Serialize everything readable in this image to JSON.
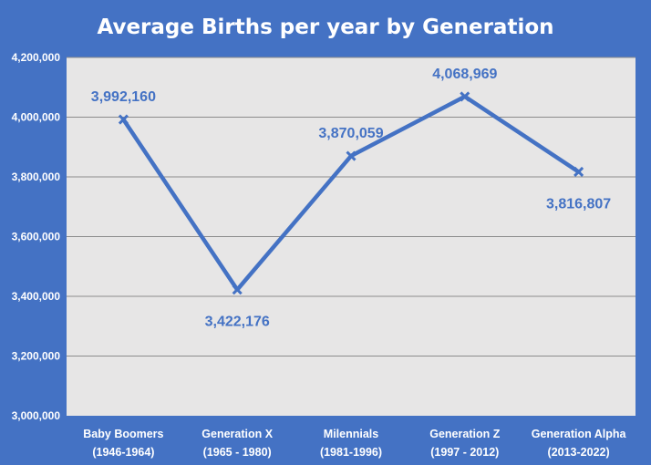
{
  "chart_data": {
    "type": "line",
    "title": "Average Births per year by Generation",
    "xlabel": "",
    "ylabel": "",
    "categories": [
      [
        "Baby Boomers",
        "(1946-1964)"
      ],
      [
        "Generation X",
        "(1965 - 1980)"
      ],
      [
        "Milennials",
        "(1981-1996)"
      ],
      [
        "Generation Z",
        "(1997 - 2012)"
      ],
      [
        "Generation Alpha",
        "(2013-2022)"
      ]
    ],
    "series": [
      {
        "values": [
          3992160,
          3422176,
          3870059,
          4068969,
          3816807
        ],
        "labels": [
          "3,992,160",
          "3,422,176",
          "3,870,059",
          "4,068,969",
          "3,816,807"
        ],
        "label_side": [
          "above",
          "below",
          "above",
          "above",
          "below"
        ]
      }
    ],
    "ylim": [
      3000000,
      4200000
    ],
    "yticks": [
      3000000,
      3200000,
      3400000,
      3600000,
      3800000,
      4000000,
      4200000
    ],
    "ytick_labels": [
      "3,000,000",
      "3,200,000",
      "3,400,000",
      "3,600,000",
      "3,800,000",
      "4,000,000",
      "4,200,000"
    ],
    "grid": true,
    "legend": "none",
    "colors": {
      "background": "#4472C4",
      "plot_area": "#E7E6E6",
      "line": "#4472C4",
      "gridline": "#8C8C8C",
      "text": "#FFFFFF",
      "data_label": "#4472C4"
    }
  }
}
